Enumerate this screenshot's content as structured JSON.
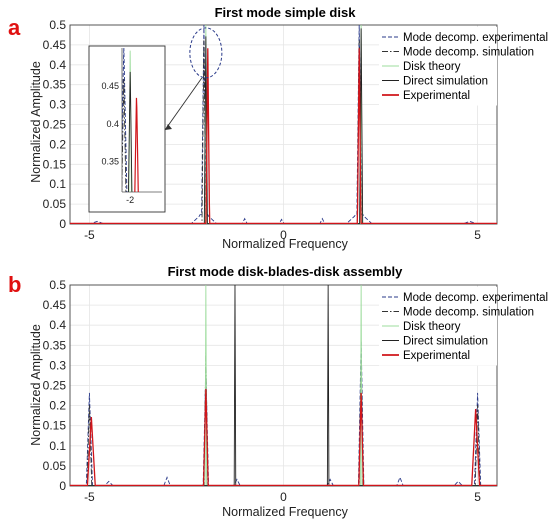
{
  "chart_data": [
    {
      "panel": "a",
      "type": "line",
      "title": "First mode simple disk",
      "xlabel": "Normalized Frequency",
      "ylabel": "Normalized Amplitude",
      "xlim": [
        -5.5,
        5.5
      ],
      "ylim": [
        0,
        0.5
      ],
      "xticks": [
        -5,
        0,
        5
      ],
      "yticks": [
        0,
        0.05,
        0.1,
        0.15,
        0.2,
        0.25,
        0.3,
        0.35,
        0.4,
        0.45,
        0.5
      ],
      "grid": true,
      "legend_position": "top-right",
      "series": [
        {
          "name": "Mode decomp. experimental",
          "color": "#2a3a8a",
          "style": "dashed",
          "peaks": [
            [
              -2.05,
              0.48,
              0.06
            ],
            [
              -2.15,
              0.02,
              0.22
            ],
            [
              -1.95,
              0.02,
              0.22
            ],
            [
              1.95,
              0.49,
              0.06
            ],
            [
              1.85,
              0.02,
              0.22
            ],
            [
              2.05,
              0.02,
              0.22
            ],
            [
              -4.8,
              0.005,
              0.15
            ],
            [
              -1.0,
              0.012,
              0.06
            ],
            [
              -0.05,
              0.01,
              0.06
            ],
            [
              1.0,
              0.012,
              0.06
            ],
            [
              4.8,
              0.005,
              0.15
            ]
          ]
        },
        {
          "name": "Mode decomp. simulation",
          "color": "#333333",
          "style": "dashdot",
          "peaks": [
            [
              -2.05,
              0.46,
              0.05
            ],
            [
              1.95,
              0.46,
              0.05
            ]
          ]
        },
        {
          "name": "Disk theory",
          "color": "#9ddc9d",
          "style": "solid",
          "peaks": [
            [
              -2.0,
              0.5,
              0.025
            ],
            [
              2.0,
              0.5,
              0.025
            ]
          ]
        },
        {
          "name": "Direct simulation",
          "color": "#222222",
          "style": "solid",
          "peaks": [
            [
              -2.0,
              0.47,
              0.04
            ],
            [
              2.0,
              0.49,
              0.04
            ]
          ]
        },
        {
          "name": "Experimental",
          "color": "#d0151a",
          "style": "solid",
          "peaks": [
            [
              -1.95,
              0.44,
              0.045
            ],
            [
              1.95,
              0.44,
              0.045
            ]
          ]
        }
      ],
      "annotation": {
        "ellipse_center_x": -2.0,
        "ellipse_center_y": 0.43
      },
      "inset": {
        "xlim": [
          -2.3,
          -1.75
        ],
        "ylim": [
          0.31,
          0.5
        ],
        "xticks": [
          -2
        ],
        "yticks": [
          0.35,
          0.4,
          0.45
        ]
      }
    },
    {
      "panel": "b",
      "type": "line",
      "title": "First mode disk-blades-disk assembly",
      "xlabel": "Normalized Frequency",
      "ylabel": "Normalized Amplitude",
      "xlim": [
        -5.5,
        5.5
      ],
      "ylim": [
        0,
        0.5
      ],
      "xticks": [
        -5,
        0,
        5
      ],
      "yticks": [
        0,
        0.05,
        0.1,
        0.15,
        0.2,
        0.25,
        0.3,
        0.35,
        0.4,
        0.45,
        0.5
      ],
      "grid": true,
      "legend_position": "top-right",
      "series": [
        {
          "name": "Mode decomp. experimental",
          "color": "#2a3a8a",
          "style": "dashed",
          "peaks": [
            [
              -5.0,
              0.23,
              0.08
            ],
            [
              -2.0,
              0.29,
              0.07
            ],
            [
              2.0,
              0.36,
              0.07
            ],
            [
              5.0,
              0.23,
              0.08
            ],
            [
              -4.5,
              0.01,
              0.1
            ],
            [
              -3.0,
              0.02,
              0.08
            ],
            [
              -1.2,
              0.015,
              0.08
            ],
            [
              1.2,
              0.015,
              0.08
            ],
            [
              3.0,
              0.02,
              0.08
            ],
            [
              4.5,
              0.01,
              0.1
            ]
          ]
        },
        {
          "name": "Mode decomp. simulation",
          "color": "#333333",
          "style": "dashdot",
          "peaks": [
            [
              -5.0,
              0.2,
              0.06
            ],
            [
              -2.0,
              0.33,
              0.05
            ],
            [
              2.0,
              0.33,
              0.05
            ],
            [
              5.0,
              0.2,
              0.06
            ]
          ]
        },
        {
          "name": "Disk theory",
          "color": "#9ddc9d",
          "style": "solid",
          "peaks": [
            [
              -2.0,
              0.5,
              0.02
            ],
            [
              2.0,
              0.5,
              0.02
            ]
          ]
        },
        {
          "name": "Direct simulation",
          "color": "#222222",
          "style": "solid",
          "peaks": [
            [
              -1.25,
              0.5,
              0.02
            ],
            [
              1.15,
              0.5,
              0.02
            ]
          ]
        },
        {
          "name": "Experimental",
          "color": "#d0151a",
          "style": "solid",
          "peaks": [
            [
              -4.95,
              0.17,
              0.1
            ],
            [
              -2.0,
              0.24,
              0.06
            ],
            [
              2.0,
              0.23,
              0.06
            ],
            [
              4.95,
              0.19,
              0.1
            ]
          ]
        }
      ]
    }
  ],
  "panels": {
    "a": {
      "letter": "a"
    },
    "b": {
      "letter": "b"
    }
  }
}
